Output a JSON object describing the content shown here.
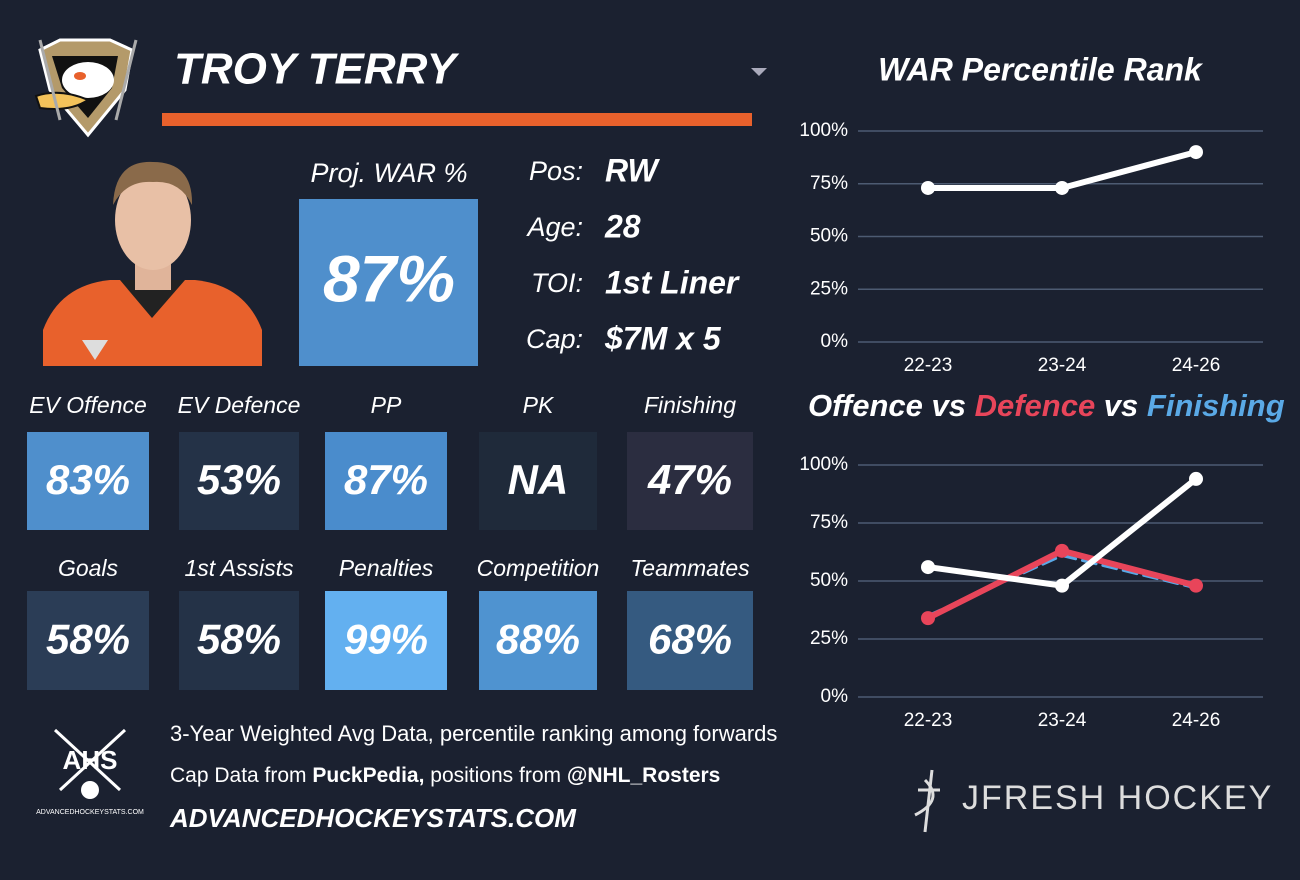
{
  "header": {
    "player_name": "TROY TERRY"
  },
  "projection": {
    "label": "Proj. WAR %",
    "value": "87%",
    "color": "#4f8fcc"
  },
  "info": [
    {
      "label": "Pos:",
      "value": "RW"
    },
    {
      "label": "Age:",
      "value": "28"
    },
    {
      "label": "TOI:",
      "value": "1st Liner"
    },
    {
      "label": "Cap:",
      "value": "$7M x 5"
    }
  ],
  "stats": [
    {
      "label": "EV Offence",
      "value": "83%",
      "color": "#4f8fcc"
    },
    {
      "label": "EV Defence",
      "value": "53%",
      "color": "#243247"
    },
    {
      "label": "PP",
      "value": "87%",
      "color": "#4a8ccc"
    },
    {
      "label": "PK",
      "value": "NA",
      "color": "#1f2a3a"
    },
    {
      "label": "Finishing",
      "value": "47%",
      "color": "#2b2d40"
    },
    {
      "label": "Goals",
      "value": "58%",
      "color": "#2b3d56"
    },
    {
      "label": "1st Assists",
      "value": "58%",
      "color": "#243247"
    },
    {
      "label": "Penalties",
      "value": "99%",
      "color": "#63b0f0"
    },
    {
      "label": "Competition",
      "value": "88%",
      "color": "#4f93d0"
    },
    {
      "label": "Teammates",
      "value": "68%",
      "color": "#355a80"
    }
  ],
  "footer": {
    "note": "3-Year Weighted Avg Data, percentile ranking among forwards",
    "credits": [
      {
        "text": "Cap Data from ",
        "bold": false
      },
      {
        "text": "PuckPedia,",
        "bold": true
      },
      {
        "text": " positions from ",
        "bold": false
      },
      {
        "text": "@NHL_Rosters",
        "bold": true
      }
    ],
    "website": "ADVANCEDHOCKEYSTATS.COM",
    "ahs_logo": {
      "text": "AHS",
      "caption": "ADVANCEDHOCKEYSTATS.COM"
    },
    "brand": "JFRESH HOCKEY"
  },
  "chart_data": [
    {
      "type": "line",
      "title": "WAR Percentile Rank",
      "categories": [
        "22-23",
        "23-24",
        "24-26"
      ],
      "series": [
        {
          "name": "WAR",
          "color": "#ffffff",
          "values": [
            73,
            73,
            90
          ],
          "markers": true,
          "dashed": false
        }
      ],
      "ylim": [
        0,
        100
      ],
      "yticks": [
        {
          "value": 0,
          "label": "0%"
        },
        {
          "value": 25,
          "label": "25%"
        },
        {
          "value": 50,
          "label": "50%"
        },
        {
          "value": 75,
          "label": "75%"
        },
        {
          "value": 100,
          "label": "100%"
        }
      ],
      "grid": true
    },
    {
      "type": "line",
      "title_joiner": "vs",
      "categories": [
        "22-23",
        "23-24",
        "24-26"
      ],
      "series": [
        {
          "name": "Offence",
          "color": "#ffffff",
          "values": [
            56,
            48,
            94
          ],
          "markers": true,
          "dashed": false
        },
        {
          "name": "Defence",
          "color": "#e8455a",
          "values": [
            34,
            63,
            48
          ],
          "markers": true,
          "dashed": false
        },
        {
          "name": "Finishing",
          "color": "#5aa9e6",
          "values": [
            35,
            61,
            47
          ],
          "markers": false,
          "dashed": true
        }
      ],
      "ylim": [
        0,
        100
      ],
      "yticks": [
        {
          "value": 0,
          "label": "0%"
        },
        {
          "value": 25,
          "label": "25%"
        },
        {
          "value": 50,
          "label": "50%"
        },
        {
          "value": 75,
          "label": "75%"
        },
        {
          "value": 100,
          "label": "100%"
        }
      ],
      "grid": true
    }
  ]
}
